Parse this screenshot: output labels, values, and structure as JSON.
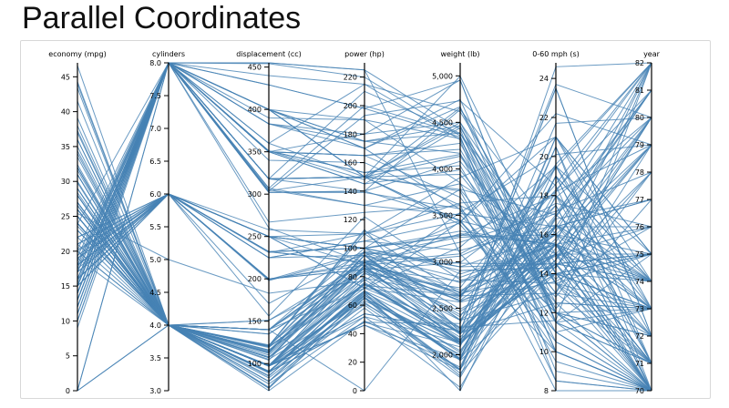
{
  "page": {
    "title": "Parallel Coordinates"
  },
  "chart_data": {
    "type": "parallel-coordinates",
    "title": "Parallel Coordinates",
    "line_color": "#4682b4",
    "axes": [
      {
        "key": "economy",
        "label": "economy (mpg)",
        "domain": [
          0,
          47
        ],
        "ticks": [
          0,
          5,
          10,
          15,
          20,
          25,
          30,
          35,
          40,
          45
        ],
        "tick_labels": [
          "0",
          "5",
          "10",
          "15",
          "20",
          "25",
          "30",
          "35",
          "40",
          "45"
        ]
      },
      {
        "key": "cylinders",
        "label": "cylinders",
        "domain": [
          3,
          8
        ],
        "ticks": [
          3,
          3.5,
          4,
          4.5,
          5,
          5.5,
          6,
          6.5,
          7,
          7.5,
          8
        ],
        "tick_labels": [
          "3.0",
          "3.5",
          "4.0",
          "4.5",
          "5.0",
          "5.5",
          "6.0",
          "6.5",
          "7.0",
          "7.5",
          "8.0"
        ]
      },
      {
        "key": "displacement",
        "label": "displacement (cc)",
        "domain": [
          68,
          455
        ],
        "ticks": [
          100,
          150,
          200,
          250,
          300,
          350,
          400,
          450
        ],
        "tick_labels": [
          "100",
          "150",
          "200",
          "250",
          "300",
          "350",
          "400",
          "450"
        ]
      },
      {
        "key": "power",
        "label": "power (hp)",
        "domain": [
          0,
          230
        ],
        "ticks": [
          0,
          20,
          40,
          60,
          80,
          100,
          120,
          140,
          160,
          180,
          200,
          220
        ],
        "tick_labels": [
          "0",
          "20",
          "40",
          "60",
          "80",
          "100",
          "120",
          "140",
          "160",
          "180",
          "200",
          "220"
        ]
      },
      {
        "key": "weight",
        "label": "weight (lb)",
        "domain": [
          1613,
          5140
        ],
        "ticks": [
          2000,
          2500,
          3000,
          3500,
          4000,
          4500,
          5000
        ],
        "tick_labels": [
          "2,000",
          "2,500",
          "3,000",
          "3,500",
          "4,000",
          "4,500",
          "5,000"
        ]
      },
      {
        "key": "accel",
        "label": "0-60 mph (s)",
        "domain": [
          8,
          24.8
        ],
        "ticks": [
          8,
          10,
          12,
          14,
          16,
          18,
          20,
          22,
          24
        ],
        "tick_labels": [
          "8",
          "10",
          "12",
          "14",
          "16",
          "18",
          "20",
          "22",
          "24"
        ]
      },
      {
        "key": "year",
        "label": "year",
        "domain": [
          70,
          82
        ],
        "ticks": [
          70,
          71,
          72,
          73,
          74,
          75,
          76,
          77,
          78,
          79,
          80,
          81,
          82
        ],
        "tick_labels": [
          "70",
          "71",
          "72",
          "73",
          "74",
          "75",
          "76",
          "77",
          "78",
          "79",
          "80",
          "81",
          "82"
        ]
      }
    ],
    "rows": [
      [
        18,
        8,
        307,
        130,
        3504,
        12,
        70
      ],
      [
        15,
        8,
        350,
        165,
        3693,
        11.5,
        70
      ],
      [
        18,
        8,
        318,
        150,
        3436,
        11,
        70
      ],
      [
        16,
        8,
        304,
        150,
        3433,
        12,
        70
      ],
      [
        17,
        8,
        302,
        140,
        3449,
        10.5,
        70
      ],
      [
        15,
        8,
        429,
        198,
        4341,
        10,
        70
      ],
      [
        14,
        8,
        454,
        220,
        4354,
        9,
        70
      ],
      [
        14,
        8,
        440,
        215,
        4312,
        8.5,
        70
      ],
      [
        14,
        8,
        455,
        225,
        4425,
        10,
        70
      ],
      [
        15,
        8,
        390,
        190,
        3850,
        8.5,
        70
      ],
      [
        15,
        8,
        383,
        170,
        3563,
        10,
        70
      ],
      [
        14,
        8,
        340,
        160,
        3609,
        8,
        70
      ],
      [
        15,
        8,
        400,
        150,
        3761,
        9.5,
        70
      ],
      [
        14,
        8,
        455,
        225,
        3086,
        10,
        70
      ],
      [
        24,
        4,
        113,
        95,
        2372,
        15,
        70
      ],
      [
        22,
        6,
        198,
        95,
        2833,
        15.5,
        70
      ],
      [
        18,
        6,
        199,
        97,
        2774,
        15.5,
        70
      ],
      [
        21,
        6,
        200,
        85,
        2587,
        16,
        70
      ],
      [
        27,
        4,
        97,
        88,
        2130,
        14.5,
        70
      ],
      [
        26,
        4,
        97,
        46,
        1835,
        20.5,
        70
      ],
      [
        25,
        4,
        110,
        87,
        2672,
        17.5,
        70
      ],
      [
        24,
        4,
        107,
        90,
        2430,
        14.5,
        70
      ],
      [
        25,
        4,
        104,
        95,
        2375,
        17.5,
        70
      ],
      [
        26,
        4,
        121,
        113,
        2234,
        12.5,
        70
      ],
      [
        21,
        6,
        199,
        90,
        2648,
        15,
        70
      ],
      [
        10,
        8,
        360,
        215,
        4615,
        14,
        70
      ],
      [
        10,
        8,
        307,
        200,
        4376,
        15,
        70
      ],
      [
        11,
        8,
        318,
        210,
        4382,
        13.5,
        70
      ],
      [
        9,
        8,
        304,
        193,
        4732,
        18.5,
        70
      ],
      [
        27,
        4,
        97,
        88,
        2130,
        14.5,
        71
      ],
      [
        28,
        4,
        140,
        90,
        2264,
        15.5,
        71
      ],
      [
        25,
        4,
        113,
        95,
        2228,
        14,
        71
      ],
      [
        19,
        6,
        232,
        100,
        2634,
        13,
        71
      ],
      [
        16,
        6,
        225,
        105,
        3439,
        15.5,
        71
      ],
      [
        17,
        6,
        250,
        100,
        3329,
        15.5,
        71
      ],
      [
        19,
        6,
        250,
        88,
        3302,
        15.5,
        71
      ],
      [
        18,
        6,
        232,
        100,
        3288,
        15.5,
        71
      ],
      [
        14,
        8,
        350,
        165,
        4209,
        12,
        71
      ],
      [
        14,
        8,
        400,
        175,
        4464,
        11.5,
        71
      ],
      [
        14,
        8,
        351,
        153,
        4154,
        13.5,
        71
      ],
      [
        12,
        8,
        383,
        180,
        4955,
        11.5,
        71
      ],
      [
        13,
        8,
        400,
        170,
        4746,
        12,
        71
      ],
      [
        31,
        4,
        71,
        65,
        1773,
        19,
        71
      ],
      [
        35,
        4,
        72,
        69,
        1613,
        18,
        71
      ],
      [
        27,
        4,
        97,
        60,
        1834,
        19,
        71
      ],
      [
        26,
        4,
        91,
        70,
        1955,
        20.5,
        71
      ],
      [
        24,
        4,
        113,
        95,
        2278,
        15.5,
        72
      ],
      [
        25,
        4,
        98,
        80,
        2164,
        15,
        72
      ],
      [
        23,
        4,
        97,
        54,
        2254,
        23.5,
        72
      ],
      [
        20,
        4,
        140,
        90,
        2408,
        19.5,
        72
      ],
      [
        21,
        4,
        122,
        86,
        2226,
        16.5,
        72
      ],
      [
        13,
        8,
        350,
        165,
        4274,
        12,
        72
      ],
      [
        14,
        8,
        400,
        175,
        4385,
        12,
        72
      ],
      [
        15,
        8,
        318,
        150,
        4135,
        13.5,
        72
      ],
      [
        12,
        8,
        429,
        198,
        4952,
        11.5,
        73
      ],
      [
        13,
        8,
        400,
        150,
        4464,
        12,
        73
      ],
      [
        15,
        8,
        318,
        150,
        3777,
        12.5,
        73
      ],
      [
        13,
        8,
        350,
        145,
        3988,
        13,
        73
      ],
      [
        18,
        6,
        225,
        105,
        3121,
        16.5,
        73
      ],
      [
        16,
        6,
        250,
        100,
        3278,
        18,
        73
      ],
      [
        18,
        6,
        232,
        100,
        2945,
        16,
        73
      ],
      [
        23,
        4,
        97,
        54,
        2254,
        23.5,
        72
      ],
      [
        26,
        4,
        97,
        46,
        1950,
        21,
        73
      ],
      [
        11,
        8,
        400,
        150,
        4997,
        14,
        73
      ],
      [
        12,
        8,
        350,
        180,
        4499,
        12.5,
        73
      ],
      [
        29,
        4,
        68,
        49,
        1867,
        19.5,
        73
      ],
      [
        24,
        4,
        116,
        75,
        2158,
        15.5,
        73
      ],
      [
        20,
        4,
        114,
        91,
        2582,
        14,
        73
      ],
      [
        19,
        4,
        121,
        112,
        2868,
        15.5,
        73
      ],
      [
        15,
        8,
        318,
        150,
        3399,
        11,
        73
      ],
      [
        24,
        4,
        121,
        110,
        2660,
        14,
        73
      ],
      [
        20,
        6,
        156,
        122,
        2807,
        13.5,
        73
      ],
      [
        26,
        4,
        79,
        67,
        1963,
        15.5,
        74
      ],
      [
        31,
        4,
        76,
        52,
        1649,
        16.5,
        74
      ],
      [
        32,
        4,
        83,
        61,
        2003,
        19,
        74
      ],
      [
        25,
        4,
        90,
        75,
        2125,
        14.5,
        74
      ],
      [
        16,
        6,
        250,
        100,
        3781,
        17,
        74
      ],
      [
        16,
        6,
        258,
        110,
        3632,
        18,
        74
      ],
      [
        14,
        8,
        302,
        140,
        4638,
        16,
        74
      ],
      [
        29,
        4,
        98,
        83,
        2219,
        16.5,
        74
      ],
      [
        26,
        4,
        79,
        67,
        1950,
        19,
        74
      ],
      [
        22,
        6,
        232,
        90,
        3085,
        17.6,
        76
      ],
      [
        32,
        4,
        71,
        65,
        1836,
        21,
        74
      ],
      [
        28,
        4,
        90,
        75,
        2125,
        14.5,
        74
      ],
      [
        24,
        4,
        90,
        75,
        2108,
        15.5,
        74
      ],
      [
        26,
        4,
        116,
        75,
        2246,
        14,
        74
      ],
      [
        24,
        4,
        120,
        97,
        2489,
        15,
        74
      ],
      [
        15,
        6,
        250,
        72,
        3432,
        21,
        75
      ],
      [
        15,
        6,
        250,
        72,
        3158,
        19.5,
        75
      ],
      [
        16,
        8,
        400,
        170,
        4668,
        11.5,
        75
      ],
      [
        16,
        8,
        350,
        145,
        4440,
        14,
        75
      ],
      [
        16,
        8,
        318,
        150,
        4498,
        14.5,
        75
      ],
      [
        13,
        8,
        351,
        148,
        4657,
        13.5,
        75
      ],
      [
        29,
        4,
        90,
        70,
        1937,
        14,
        75
      ],
      [
        23,
        4,
        115,
        95,
        2694,
        15,
        75
      ],
      [
        24,
        4,
        107,
        86,
        2464,
        15.5,
        76
      ],
      [
        30,
        4,
        97,
        67,
        1985,
        16.4,
        77
      ],
      [
        28,
        4,
        97,
        75,
        2155,
        16.4,
        76
      ],
      [
        19,
        6,
        225,
        95,
        3264,
        16,
        75
      ],
      [
        18,
        6,
        171,
        97,
        2984,
        14.5,
        75
      ],
      [
        17,
        6,
        231,
        110,
        3907,
        21,
        75
      ],
      [
        22,
        4,
        121,
        98,
        2945,
        14.5,
        75
      ],
      [
        21,
        6,
        200,
        85,
        2990,
        18.2,
        79
      ],
      [
        25,
        4,
        140,
        92,
        2572,
        14.9,
        76
      ],
      [
        17.5,
        6,
        250,
        110,
        3520,
        16.4,
        77
      ],
      [
        17,
        8,
        305,
        130,
        3840,
        15.4,
        79
      ],
      [
        33.5,
        4,
        85,
        70,
        1945,
        16.8,
        77
      ],
      [
        36,
        4,
        98,
        66,
        1800,
        14.4,
        78
      ],
      [
        19.4,
        6,
        232,
        90,
        3210,
        17.2,
        78
      ],
      [
        20.2,
        8,
        302,
        139,
        3570,
        12.8,
        78
      ],
      [
        25.4,
        5,
        183,
        77,
        3530,
        20.1,
        79
      ],
      [
        37.3,
        4,
        91,
        69,
        2130,
        14.7,
        79
      ],
      [
        28.4,
        4,
        151,
        90,
        2670,
        16,
        79
      ],
      [
        41.5,
        4,
        98,
        76,
        2144,
        14.7,
        80
      ],
      [
        46.6,
        4,
        86,
        65,
        2110,
        17.9,
        80
      ],
      [
        44.3,
        4,
        90,
        48,
        2085,
        21.7,
        80
      ],
      [
        43.4,
        4,
        90,
        48,
        2335,
        23.7,
        80
      ],
      [
        32.4,
        4,
        107,
        72,
        2290,
        17,
        80
      ],
      [
        29.8,
        4,
        89,
        62,
        1845,
        15.3,
        80
      ],
      [
        23.6,
        4,
        140,
        100,
        2905,
        14.3,
        80
      ],
      [
        34.4,
        4,
        98,
        65,
        2045,
        16.2,
        81
      ],
      [
        39.1,
        4,
        79,
        58,
        1755,
        16.9,
        81
      ],
      [
        31.6,
        4,
        120,
        74,
        2635,
        18.3,
        81
      ],
      [
        20.2,
        6,
        200,
        88,
        3060,
        17.1,
        81
      ],
      [
        26.6,
        4,
        151,
        84,
        2635,
        16.4,
        81
      ],
      [
        28,
        4,
        112,
        88,
        2605,
        19.6,
        82
      ],
      [
        38,
        4,
        105,
        63,
        2125,
        14.7,
        82
      ],
      [
        36,
        4,
        135,
        84,
        2370,
        13,
        82
      ],
      [
        32,
        4,
        135,
        84,
        2295,
        11.6,
        82
      ],
      [
        34,
        4,
        108,
        70,
        2245,
        16.9,
        82
      ],
      [
        27,
        4,
        140,
        86,
        2790,
        15.6,
        82
      ],
      [
        44,
        4,
        97,
        52,
        2130,
        24.6,
        82
      ],
      [
        31,
        4,
        119,
        82,
        2720,
        19.4,
        82
      ],
      [
        28,
        4,
        120,
        79,
        2625,
        18.6,
        82
      ],
      [
        37,
        4,
        91,
        68,
        2025,
        18.2,
        82
      ],
      [
        17.5,
        8,
        318,
        140,
        4080,
        13.7,
        78
      ],
      [
        15.5,
        8,
        400,
        190,
        4325,
        12.2,
        77
      ],
      [
        19.2,
        8,
        267,
        125,
        3605,
        15,
        79
      ],
      [
        18.5,
        8,
        360,
        150,
        3940,
        13,
        79
      ],
      [
        23.9,
        8,
        260,
        90,
        3420,
        22.2,
        79
      ],
      [
        26.5,
        4,
        140,
        72,
        2565,
        13.6,
        76
      ],
      [
        0,
        4,
        97,
        78,
        2188,
        15.8,
        80
      ],
      [
        0,
        8,
        383,
        175,
        4166,
        10.5,
        70
      ],
      [
        0,
        4,
        140,
        0,
        2905,
        14.3,
        80
      ],
      [
        0,
        8,
        351,
        153,
        4034,
        11,
        70
      ]
    ]
  }
}
